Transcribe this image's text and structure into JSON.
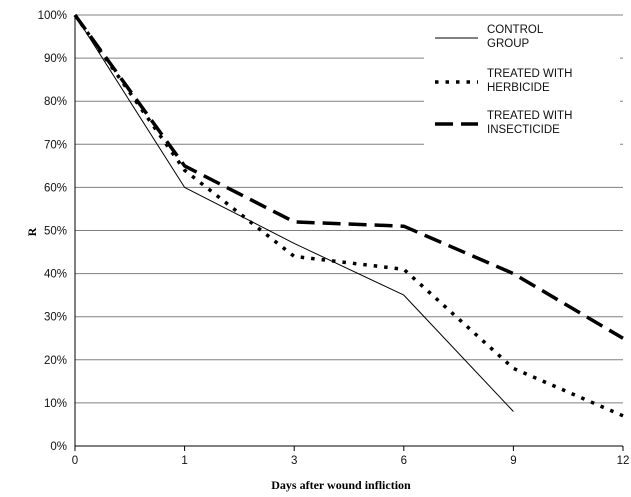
{
  "chart_data": {
    "type": "line",
    "title": "",
    "xlabel": "Days after wound infliction",
    "ylabel": "R",
    "categories": [
      "0",
      "1",
      "3",
      "6",
      "9",
      "12"
    ],
    "ylim": [
      0,
      100
    ],
    "yticks": [
      "0%",
      "10%",
      "20%",
      "30%",
      "40%",
      "50%",
      "60%",
      "70%",
      "80%",
      "90%",
      "100%"
    ],
    "grid": true,
    "legend_position": "top-right",
    "series": [
      {
        "name": "CONTROL GROUP",
        "legend_lines": [
          "CONTROL",
          "GROUP"
        ],
        "style": "solid",
        "values": [
          100,
          60,
          47,
          35,
          8,
          null
        ]
      },
      {
        "name": "TREATED WITH HERBICIDE",
        "legend_lines": [
          "TREATED WITH",
          "HERBICIDE"
        ],
        "style": "dotted",
        "values": [
          100,
          64,
          44,
          41,
          18,
          7
        ]
      },
      {
        "name": "TREATED WITH INSECTICIDE",
        "legend_lines": [
          "TREATED WITH",
          "INSECTICIDE"
        ],
        "style": "dashed",
        "values": [
          100,
          65,
          52,
          51,
          40,
          25
        ]
      }
    ],
    "colors": {
      "line": "#000000",
      "grid": "#808080",
      "axis": "#000000"
    }
  }
}
